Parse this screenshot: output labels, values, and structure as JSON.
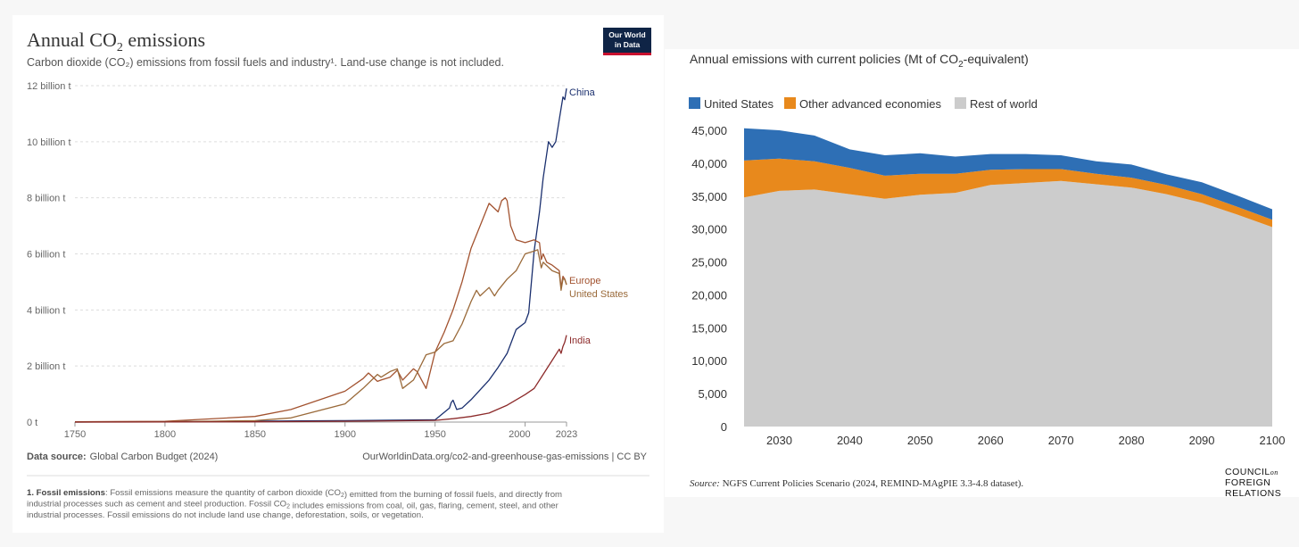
{
  "chart_data": [
    {
      "type": "line",
      "title": "Annual CO₂ emissions",
      "title_main": "Annual CO",
      "title_sub": "2",
      "title_end": " emissions",
      "subtitle": "Carbon dioxide (CO₂) emissions from fossil fuels and industry¹. Land-use change is not included.",
      "logo_text": [
        "Our World",
        "in Data"
      ],
      "y_ticks": [
        {
          "value": 0,
          "label": "0 t"
        },
        {
          "value": 2,
          "label": "2 billion t"
        },
        {
          "value": 4,
          "label": "4 billion t"
        },
        {
          "value": 6,
          "label": "6 billion t"
        },
        {
          "value": 8,
          "label": "8 billion t"
        },
        {
          "value": 10,
          "label": "10 billion t"
        },
        {
          "value": 12,
          "label": "12 billion t"
        }
      ],
      "x_ticks": [
        {
          "value": 1750,
          "label": "1750"
        },
        {
          "value": 1800,
          "label": "1800"
        },
        {
          "value": 1850,
          "label": "1850"
        },
        {
          "value": 1900,
          "label": "1900"
        },
        {
          "value": 1950,
          "label": "1950"
        },
        {
          "value": 2000,
          "label": "2000"
        },
        {
          "value": 2023,
          "label": "2023"
        }
      ],
      "xlim": [
        1750,
        2023
      ],
      "ylim": [
        0,
        12
      ],
      "y_unit": "billion t",
      "grid": true,
      "series": [
        {
          "name": "China",
          "color": "#1a2f6e",
          "x": [
            1750,
            1900,
            1945,
            1950,
            1958,
            1959,
            1960,
            1962,
            1965,
            1970,
            1975,
            1980,
            1985,
            1990,
            1995,
            2000,
            2002,
            2005,
            2008,
            2010,
            2013,
            2015,
            2017,
            2019,
            2021,
            2022,
            2023
          ],
          "y": [
            0,
            0.05,
            0.08,
            0.08,
            0.5,
            0.7,
            0.78,
            0.45,
            0.5,
            0.8,
            1.15,
            1.5,
            1.95,
            2.45,
            3.3,
            3.55,
            3.9,
            6.1,
            7.5,
            8.7,
            10.0,
            9.8,
            10.0,
            10.8,
            11.6,
            11.5,
            11.9
          ]
        },
        {
          "name": "Europe",
          "color": "#a2522f",
          "x": [
            1750,
            1800,
            1850,
            1870,
            1900,
            1910,
            1913,
            1918,
            1920,
            1925,
            1929,
            1932,
            1938,
            1940,
            1945,
            1950,
            1955,
            1960,
            1965,
            1970,
            1975,
            1980,
            1985,
            1987,
            1989,
            1990,
            1992,
            1995,
            2000,
            2005,
            2008,
            2009,
            2010,
            2012,
            2015,
            2019,
            2020,
            2021,
            2022,
            2023
          ],
          "y": [
            0.01,
            0.03,
            0.2,
            0.45,
            1.1,
            1.55,
            1.75,
            1.45,
            1.5,
            1.6,
            1.85,
            1.5,
            1.9,
            1.8,
            1.2,
            2.5,
            3.2,
            4.0,
            5.0,
            6.2,
            7.0,
            7.8,
            7.5,
            7.9,
            8.0,
            7.9,
            7.0,
            6.5,
            6.4,
            6.5,
            6.4,
            5.8,
            6.0,
            5.7,
            5.6,
            5.4,
            4.8,
            5.2,
            5.1,
            4.9
          ]
        },
        {
          "name": "United States",
          "color": "#9a6a3a",
          "x": [
            1750,
            1800,
            1850,
            1870,
            1900,
            1910,
            1918,
            1920,
            1925,
            1929,
            1932,
            1938,
            1940,
            1945,
            1950,
            1955,
            1960,
            1965,
            1970,
            1973,
            1975,
            1980,
            1983,
            1985,
            1990,
            1995,
            2000,
            2005,
            2007,
            2009,
            2010,
            2015,
            2019,
            2020,
            2021,
            2022,
            2023
          ],
          "y": [
            0,
            0.01,
            0.05,
            0.15,
            0.65,
            1.2,
            1.7,
            1.6,
            1.8,
            1.9,
            1.2,
            1.5,
            1.75,
            2.4,
            2.5,
            2.8,
            2.9,
            3.5,
            4.3,
            4.7,
            4.5,
            4.8,
            4.5,
            4.7,
            5.1,
            5.4,
            6.0,
            6.1,
            6.15,
            5.5,
            5.7,
            5.4,
            5.3,
            4.7,
            5.1,
            5.1,
            4.9
          ]
        },
        {
          "name": "India",
          "color": "#8c2a2a",
          "x": [
            1750,
            1850,
            1900,
            1950,
            1960,
            1970,
            1980,
            1990,
            2000,
            2005,
            2010,
            2015,
            2019,
            2020,
            2021,
            2022,
            2023
          ],
          "y": [
            0,
            0.01,
            0.03,
            0.06,
            0.12,
            0.2,
            0.32,
            0.6,
            0.98,
            1.2,
            1.7,
            2.2,
            2.6,
            2.45,
            2.7,
            2.85,
            3.1
          ]
        }
      ],
      "source_label": "Data source:",
      "source_value": "Global Carbon Budget (2024)",
      "link": "OurWorldinData.org/co2-and-greenhouse-gas-emissions | CC BY",
      "footnote": {
        "lines": [
          [
            {
              "b": "1. Fossil emissions"
            },
            {
              "t": ": Fossil emissions measure the quantity of carbon dioxide (CO"
            },
            {
              "s": "2"
            },
            {
              "t": ") emitted from the burning of fossil fuels, and directly from"
            }
          ],
          [
            {
              "t": "industrial processes such as cement and steel production. Fossil CO"
            },
            {
              "s": "2"
            },
            {
              "t": " includes emissions from coal, oil, gas, flaring, cement, steel, and other"
            }
          ],
          [
            {
              "t": "industrial processes. Fossil emissions do not include land use change, deforestation, soils, or vegetation."
            }
          ]
        ]
      }
    },
    {
      "type": "area",
      "title": "Annual emissions with current policies (Mt of CO₂-equivalent)",
      "title_pre": "Annual emissions with current policies (Mt of CO",
      "title_sub": "2",
      "title_post": "-equivalent)",
      "x": [
        2025,
        2030,
        2035,
        2040,
        2045,
        2050,
        2055,
        2060,
        2065,
        2070,
        2075,
        2080,
        2085,
        2090,
        2095,
        2100
      ],
      "series": [
        {
          "name": "Rest of world",
          "color": "#cccccc",
          "values": [
            34800,
            35800,
            36000,
            35300,
            34600,
            35200,
            35500,
            36700,
            37000,
            37300,
            36800,
            36300,
            35300,
            34000,
            32200,
            30300
          ]
        },
        {
          "name": "Other advanced economies",
          "color": "#e8891c",
          "values": [
            5600,
            4900,
            4300,
            4000,
            3500,
            3200,
            2900,
            2300,
            2100,
            1800,
            1600,
            1500,
            1400,
            1300,
            1200,
            1100
          ]
        },
        {
          "name": "United States",
          "color": "#2e6fb5",
          "values": [
            4900,
            4300,
            3900,
            2800,
            3100,
            3100,
            2600,
            2400,
            2300,
            2100,
            1900,
            2000,
            1600,
            1800,
            1700,
            1600
          ]
        }
      ],
      "legend": [
        "United States",
        "Other advanced economies",
        "Rest of world"
      ],
      "legend_position": "top-left",
      "ylim": [
        0,
        45000
      ],
      "y_ticks": [
        0,
        5000,
        10000,
        15000,
        20000,
        25000,
        30000,
        35000,
        40000,
        45000
      ],
      "y_tick_labels": [
        "0",
        "5,000",
        "10,000",
        "15,000",
        "20,000",
        "25,000",
        "30,000",
        "35,000",
        "40,000",
        "45,000"
      ],
      "x_ticks": [
        2030,
        2040,
        2050,
        2060,
        2070,
        2080,
        2090,
        2100
      ],
      "x_tick_labels": [
        "2030",
        "2040",
        "2050",
        "2060",
        "2070",
        "2080",
        "2090",
        "2100"
      ],
      "xlim": [
        2025,
        2100
      ],
      "grid": false,
      "source_label": "Source:",
      "source_text": " NGFS Current Policies Scenario (2024, REMIND-MAgPIE 3.3-4.8 dataset).",
      "logo_lines": [
        "COUNCIL",
        "on",
        "FOREIGN",
        "RELATIONS"
      ]
    }
  ]
}
